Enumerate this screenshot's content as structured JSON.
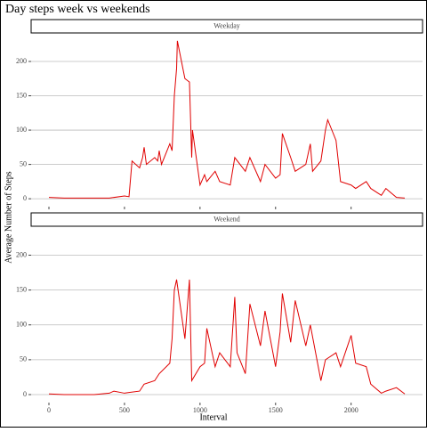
{
  "chart_data": {
    "type": "line",
    "title": "Day steps week vs weekends",
    "x_label": "Interval",
    "y_label": "Average Number of Steps",
    "xlim": [
      -117.75,
      2472.75
    ],
    "xticks": [
      0,
      500,
      1000,
      1500,
      2000
    ],
    "ylim": [
      -11.5,
      241.5
    ],
    "yticks": [
      0,
      50,
      100,
      150,
      200
    ],
    "grid": true,
    "series": [
      {
        "name": "Weekday",
        "color": "#e00000",
        "x": [
          0,
          100,
          200,
          300,
          400,
          500,
          530,
          550,
          600,
          620,
          630,
          645,
          700,
          720,
          730,
          745,
          800,
          815,
          830,
          845,
          850,
          900,
          930,
          945,
          950,
          1000,
          1030,
          1045,
          1100,
          1130,
          1200,
          1230,
          1300,
          1330,
          1400,
          1430,
          1500,
          1530,
          1545,
          1600,
          1630,
          1700,
          1730,
          1745,
          1800,
          1830,
          1845,
          1900,
          1930,
          2000,
          2030,
          2100,
          2130,
          2200,
          2230,
          2300,
          2355
        ],
        "values": [
          2,
          1,
          1,
          1,
          1,
          4,
          3,
          55,
          45,
          60,
          75,
          50,
          60,
          55,
          70,
          50,
          80,
          70,
          150,
          190,
          230,
          175,
          170,
          60,
          100,
          20,
          35,
          25,
          40,
          25,
          20,
          60,
          40,
          60,
          25,
          50,
          30,
          35,
          95,
          60,
          40,
          50,
          80,
          40,
          55,
          100,
          115,
          85,
          25,
          20,
          15,
          25,
          15,
          5,
          15,
          2,
          1
        ]
      },
      {
        "name": "Weekend",
        "color": "#e00000",
        "x": [
          0,
          100,
          200,
          300,
          400,
          430,
          500,
          530,
          600,
          630,
          700,
          730,
          800,
          815,
          830,
          845,
          900,
          930,
          945,
          1000,
          1030,
          1045,
          1100,
          1130,
          1200,
          1230,
          1245,
          1300,
          1330,
          1400,
          1430,
          1500,
          1530,
          1545,
          1600,
          1630,
          1700,
          1730,
          1800,
          1830,
          1900,
          1930,
          2000,
          2030,
          2100,
          2130,
          2200,
          2230,
          2300,
          2355
        ],
        "values": [
          1,
          0,
          0,
          0,
          2,
          5,
          2,
          3,
          5,
          15,
          20,
          30,
          45,
          80,
          150,
          165,
          80,
          165,
          20,
          40,
          45,
          95,
          40,
          60,
          40,
          140,
          60,
          30,
          130,
          70,
          120,
          40,
          90,
          145,
          75,
          135,
          70,
          100,
          20,
          50,
          60,
          40,
          85,
          45,
          40,
          15,
          2,
          5,
          10,
          1
        ]
      }
    ]
  }
}
